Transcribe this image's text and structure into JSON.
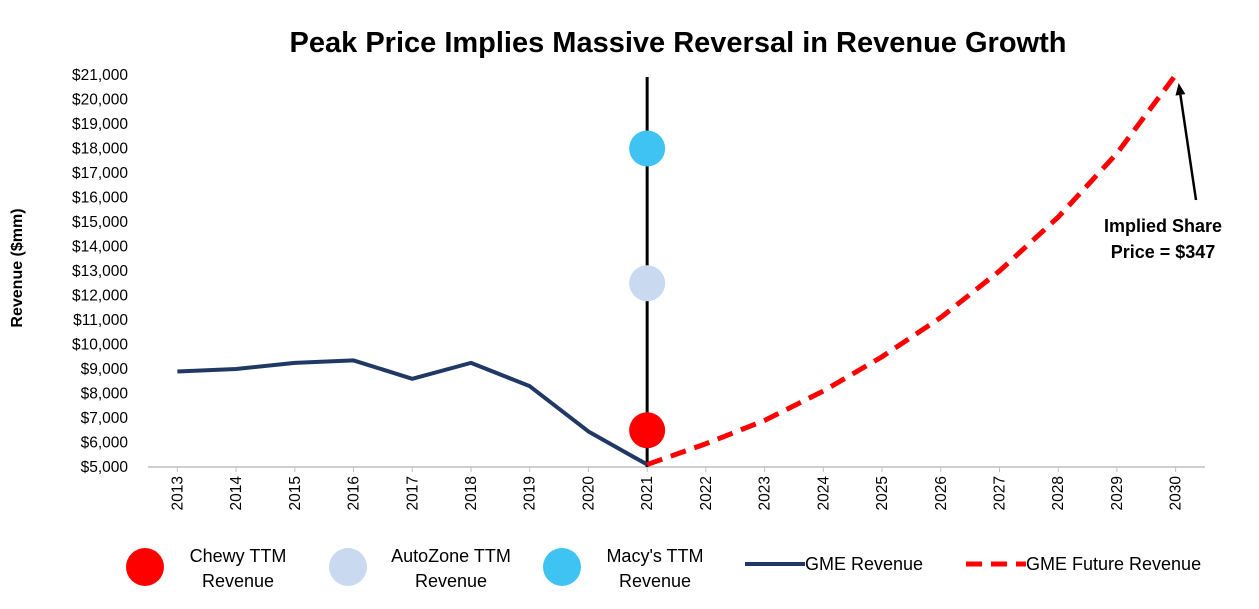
{
  "chart_data": {
    "type": "line",
    "title": "Peak Price Implies Massive Reversal in Revenue Growth",
    "ylabel": "Revenue ($mm)",
    "xlabel": "",
    "ylim": [
      5000,
      21000
    ],
    "ytick_step": 1000,
    "ytick_labels": [
      "$5,000",
      "$6,000",
      "$7,000",
      "$8,000",
      "$9,000",
      "$10,000",
      "$11,000",
      "$12,000",
      "$13,000",
      "$14,000",
      "$15,000",
      "$16,000",
      "$17,000",
      "$18,000",
      "$19,000",
      "$20,000",
      "$21,000"
    ],
    "categories": [
      "2013",
      "2014",
      "2015",
      "2016",
      "2017",
      "2018",
      "2019",
      "2020",
      "2021",
      "2022",
      "2023",
      "2024",
      "2025",
      "2026",
      "2027",
      "2028",
      "2029",
      "2030"
    ],
    "series": [
      {
        "name": "GME Revenue",
        "style": "solid",
        "color": "#1f3864",
        "values": [
          8900,
          9000,
          9250,
          9350,
          8600,
          9250,
          8300,
          6450,
          5100,
          null,
          null,
          null,
          null,
          null,
          null,
          null,
          null,
          null
        ]
      },
      {
        "name": "GME Future Revenue",
        "style": "dashed",
        "color": "#ff0000",
        "values": [
          null,
          null,
          null,
          null,
          null,
          null,
          null,
          null,
          5100,
          5950,
          6900,
          8100,
          9500,
          11100,
          13000,
          15200,
          17800,
          21000
        ]
      }
    ],
    "points": [
      {
        "name": "Chewy TTM Revenue",
        "line1": "Chewy TTM",
        "line2": "Revenue",
        "x": "2021",
        "y": 6500,
        "color": "#ff0000"
      },
      {
        "name": "AutoZone TTM Revenue",
        "line1": "AutoZone TTM",
        "line2": "Revenue",
        "x": "2021",
        "y": 12500,
        "color": "#c9d9ef"
      },
      {
        "name": "Macy's TTM Revenue",
        "line1": "Macy's TTM",
        "line2": "Revenue",
        "x": "2021",
        "y": 18000,
        "color": "#3ec3f2"
      }
    ],
    "vertical_line": {
      "x": "2021",
      "color": "#000000"
    },
    "annotation": {
      "line1": "Implied Share",
      "line2": "Price = $347",
      "arrow_target_x": "2030",
      "arrow_target_y": 21000
    },
    "legend_placement": "bottom",
    "grid": false
  }
}
